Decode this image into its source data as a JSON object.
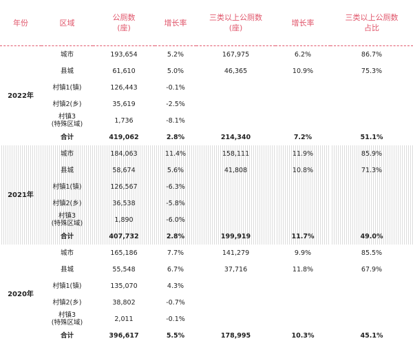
{
  "table": {
    "header": [
      "年份",
      "区域",
      "公厕数\n(座)",
      "增长率",
      "三类以上公厕数\n(座)",
      "增长率",
      "三类以上公厕数\n占比"
    ],
    "groups": [
      {
        "year": "2022年",
        "rows": [
          [
            "城市",
            "193,654",
            "5.2%",
            "167,975",
            "6.2%",
            "86.7%"
          ],
          [
            "县城",
            "61,610",
            "5.0%",
            "46,365",
            "10.9%",
            "75.3%"
          ],
          [
            "村镇1(镇)",
            "126,443",
            "-0.1%"
          ],
          [
            "村镇2(乡)",
            "35,619",
            "-2.5%"
          ],
          [
            "村镇3\n(特殊区域)",
            "1,736",
            "-8.1%"
          ],
          [
            "合计",
            "419,062",
            "2.8%",
            "214,340",
            "7.2%",
            "51.1%"
          ]
        ]
      },
      {
        "year": "2021年",
        "rows": [
          [
            "城市",
            "184,063",
            "11.4%",
            "158,111",
            "11.9%",
            "85.9%"
          ],
          [
            "县城",
            "58,674",
            "5.6%",
            "41,808",
            "10.8%",
            "71.3%"
          ],
          [
            "村镇1(镇)",
            "126,567",
            "-6.3%"
          ],
          [
            "村镇2(乡)",
            "36,538",
            "-5.8%"
          ],
          [
            "村镇3\n(特殊区域)",
            "1,890",
            "-6.0%"
          ],
          [
            "合计",
            "407,732",
            "2.8%",
            "199,919",
            "11.7%",
            "49.0%"
          ]
        ]
      },
      {
        "year": "2020年",
        "rows": [
          [
            "城市",
            "165,186",
            "7.7%",
            "141,279",
            "9.9%",
            "85.5%"
          ],
          [
            "县城",
            "55,548",
            "6.7%",
            "37,716",
            "11.8%",
            "67.9%"
          ],
          [
            "村镇1(镇)",
            "135,070",
            "4.3%"
          ],
          [
            "村镇2(乡)",
            "38,802",
            "-0.7%"
          ],
          [
            "村镇3\n(特殊区域)",
            "2,011",
            "-0.1%"
          ],
          [
            "合计",
            "396,617",
            "5.5%",
            "178,995",
            "10.3%",
            "45.1%"
          ]
        ]
      }
    ]
  }
}
